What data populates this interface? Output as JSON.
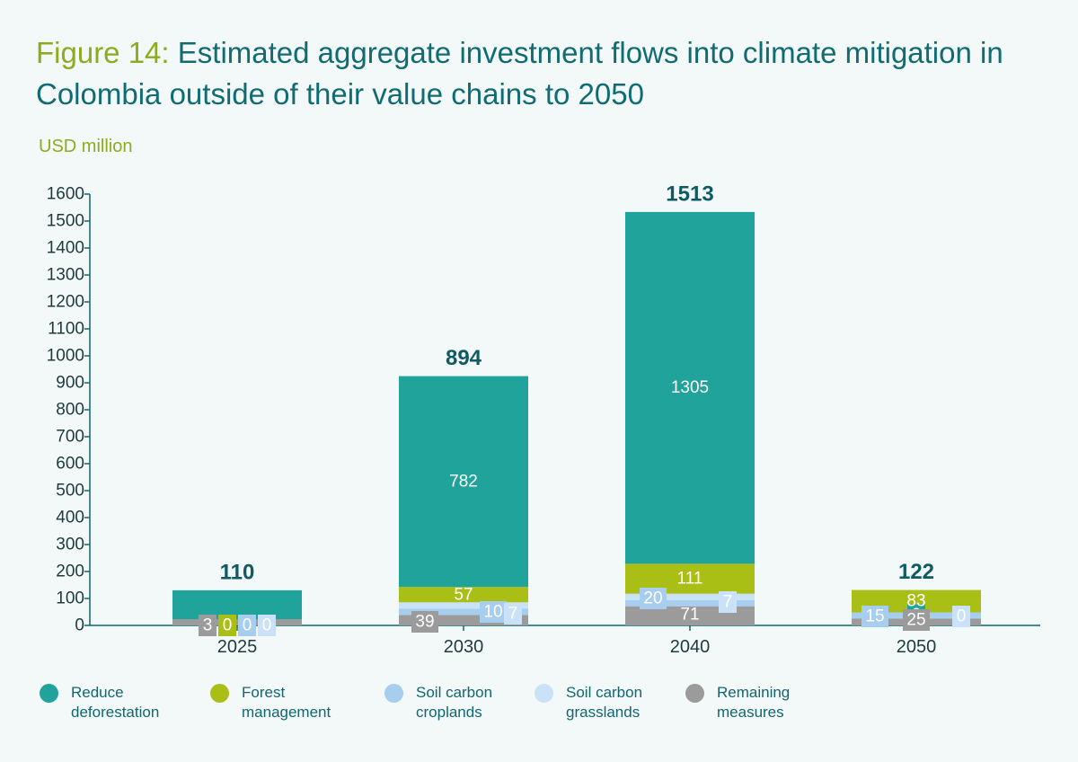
{
  "title": {
    "label": "Figure 14:",
    "text": " Estimated aggregate investment flows into climate mitigation in Colombia outside of their value chains to 2050"
  },
  "colors": {
    "title": "#106b73",
    "accent": "#8faa1e",
    "axis": "#116670",
    "background": "#f3f9f9"
  },
  "chart_data": {
    "type": "bar",
    "stacked": true,
    "ylabel": "USD million",
    "ylim": [
      0,
      1600
    ],
    "ytick_step": 100,
    "grid": false,
    "legend_position": "bottom",
    "categories": [
      "2025",
      "2030",
      "2040",
      "2050"
    ],
    "bar_values": {
      "2025": [
        107,
        0,
        0,
        0,
        3
      ],
      "2030": [
        782,
        57,
        10,
        7,
        39
      ],
      "2040": [
        1305,
        111,
        20,
        7,
        71
      ],
      "2050": [
        0,
        83,
        15,
        0,
        25
      ]
    },
    "series": [
      {
        "name": "Reduce deforestation",
        "color": "#1fa39a",
        "values": [
          107,
          782,
          1305,
          0
        ]
      },
      {
        "name": "Forest management",
        "color": "#a9bf16",
        "values": [
          0,
          57,
          111,
          83
        ]
      },
      {
        "name": "Soil carbon croplands",
        "color": "#a7cdef",
        "values": [
          0,
          10,
          20,
          15
        ]
      },
      {
        "name": "Soil carbon grasslands",
        "color": "#c9e2f7",
        "values": [
          0,
          7,
          7,
          0
        ]
      },
      {
        "name": "Remaining measures",
        "color": "#9b9b9b",
        "values": [
          3,
          39,
          71,
          25
        ]
      }
    ],
    "totals": [
      110,
      894,
      1513,
      122
    ]
  },
  "legend": [
    {
      "line1": "Reduce",
      "line2": "deforestation",
      "color": "#1fa39a",
      "icon": "teal-dot"
    },
    {
      "line1": "Forest",
      "line2": "management",
      "color": "#a9bf16",
      "icon": "green-dot"
    },
    {
      "line1": "Soil carbon",
      "line2": "croplands",
      "color": "#a7cdef",
      "icon": "light-blue-dot"
    },
    {
      "line1": "Soil carbon",
      "line2": "grasslands",
      "color": "#c9e2f7",
      "icon": "pale-blue-dot"
    },
    {
      "line1": "Remaining",
      "line2": "measures",
      "color": "#9b9b9b",
      "icon": "grey-dot"
    }
  ]
}
